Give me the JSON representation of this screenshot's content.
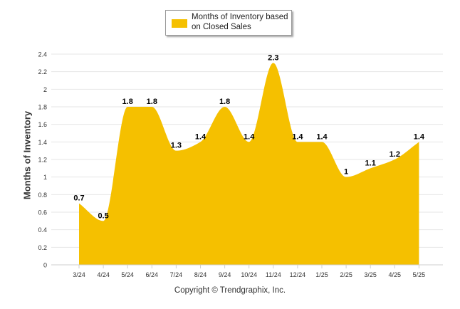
{
  "chart_data": {
    "type": "area",
    "categories": [
      "3/24",
      "4/24",
      "5/24",
      "6/24",
      "7/24",
      "8/24",
      "9/24",
      "10/24",
      "11/24",
      "12/24",
      "1/25",
      "2/25",
      "3/25",
      "4/25",
      "5/25"
    ],
    "series": [
      {
        "name": "Months of Inventory based on Closed Sales",
        "values": [
          0.7,
          0.5,
          1.8,
          1.8,
          1.3,
          1.4,
          1.8,
          1.4,
          2.3,
          1.4,
          1.4,
          1.0,
          1.1,
          1.2,
          1.4
        ],
        "value_labels": [
          "0.7",
          "0.5",
          "1.8",
          "1.8",
          "1.3",
          "1.4",
          "1.8",
          "1.4",
          "2.3",
          "1.4",
          "1.4",
          "1",
          "1.1",
          "1.2",
          "1.4"
        ],
        "color": "#f5c000"
      }
    ],
    "ylabel": "Months of Inventory",
    "xlabel": "",
    "ylim": [
      0,
      2.4
    ],
    "yticks": [
      "0",
      "0.2",
      "0.4",
      "0.6",
      "0.8",
      "1",
      "1.2",
      "1.4",
      "1.6",
      "1.8",
      "2",
      "2.2",
      "2.4"
    ],
    "grid": true,
    "legend_position": "top-center"
  },
  "legend": {
    "label": "Months of Inventory based on Closed Sales"
  },
  "footer": {
    "copyright": "Copyright © Trendgraphix, Inc."
  }
}
